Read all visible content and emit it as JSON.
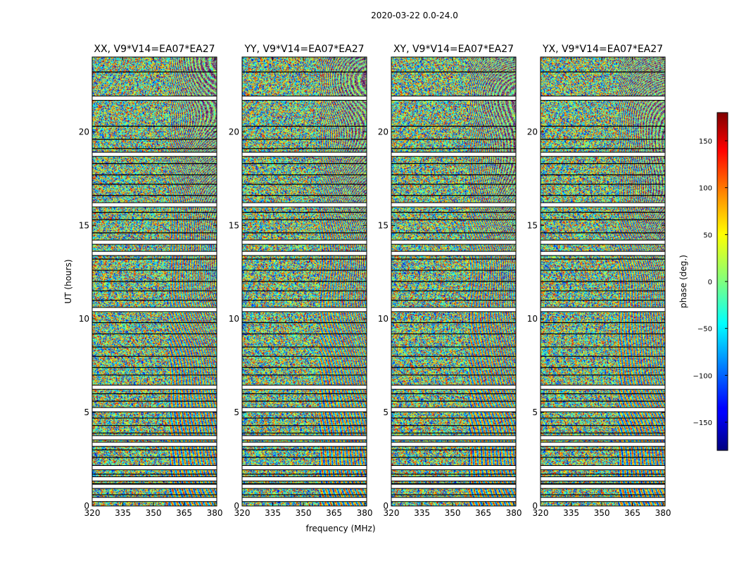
{
  "chart_data": {
    "type": "heatmap",
    "suptitle": "2020-03-22 0.0-24.0",
    "xlabel": "frequency (MHz)",
    "ylabel": "UT (hours)",
    "xlim": [
      320,
      381
    ],
    "ylim": [
      0,
      24
    ],
    "x_ticks": [
      320,
      335,
      350,
      365,
      380
    ],
    "y_ticks": [
      0,
      5,
      10,
      15,
      20
    ],
    "colormap": "jet",
    "colorbar": {
      "label": "phase (deg.)",
      "range": [
        -180,
        180
      ],
      "ticks": [
        -150,
        -100,
        -50,
        0,
        50,
        100,
        150
      ],
      "tick_labels": [
        "−150",
        "−100",
        "−50",
        "0",
        "50",
        "100",
        "150"
      ]
    },
    "panels": [
      {
        "title": "XX, V9*V14=EA07*EA27",
        "polarization": "XX",
        "baseline": "V9*V14",
        "antennas": "EA07*EA27"
      },
      {
        "title": "YY, V9*V14=EA07*EA27",
        "polarization": "YY",
        "baseline": "V9*V14",
        "antennas": "EA07*EA27"
      },
      {
        "title": "XY, V9*V14=EA07*EA27",
        "polarization": "XY",
        "baseline": "V9*V14",
        "antennas": "EA07*EA27"
      },
      {
        "title": "YX, V9*V14=EA07*EA27",
        "polarization": "YX",
        "baseline": "V9*V14",
        "antennas": "EA07*EA27"
      }
    ],
    "data_gaps_hours": [
      0.35,
      1.05,
      1.45,
      2.05,
      3.3,
      3.65,
      5.15,
      6.35,
      10.5,
      13.5,
      14.1,
      16.1,
      18.8,
      21.8
    ],
    "scan_boundaries_hours": [
      0.6,
      1.2,
      1.7,
      2.6,
      3.0,
      3.9,
      4.3,
      4.7,
      5.6,
      6.0,
      7.0,
      7.4,
      8.0,
      8.5,
      9.2,
      9.8,
      11.0,
      11.5,
      12.0,
      12.6,
      13.2,
      14.6,
      15.3,
      15.7,
      16.6,
      17.2,
      17.7,
      18.3,
      19.1,
      19.6,
      20.3,
      23.2
    ],
    "notes": "Visibility phase vs frequency and UT, dense fringe pattern (phase wraps), white horizontal bands mark flagged/no-data intervals"
  }
}
